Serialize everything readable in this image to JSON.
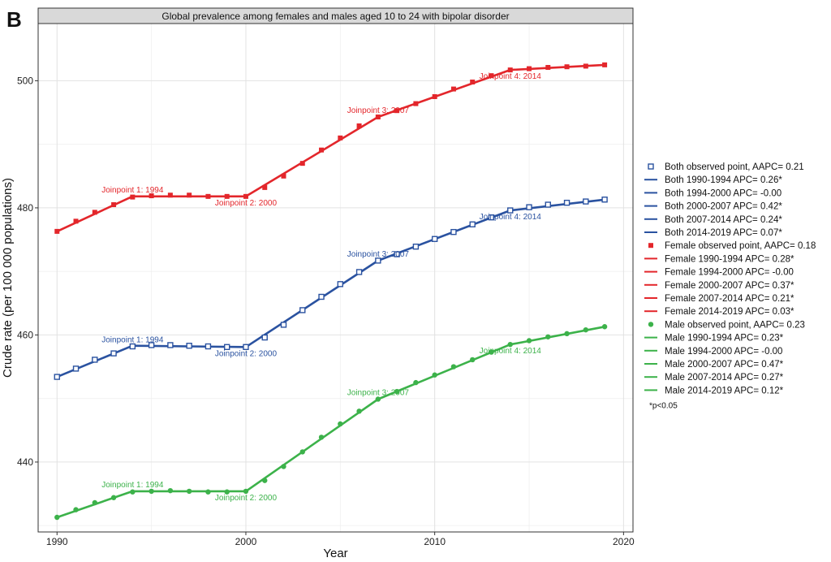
{
  "panel_label": "B",
  "chart_data": {
    "type": "line",
    "title": "Global prevalence among females and males aged 10 to 24 with bipolar disorder",
    "xlabel": "Year",
    "ylabel": "Crude rate (per 100 000 populations)",
    "xlim": [
      1989,
      2020.5
    ],
    "ylim": [
      429,
      509
    ],
    "x_ticks": [
      1990,
      2000,
      2010,
      2020
    ],
    "y_ticks": [
      440,
      460,
      480,
      500
    ],
    "grid": true,
    "legend_position": "right",
    "x": [
      1990,
      1991,
      1992,
      1993,
      1994,
      1995,
      1996,
      1997,
      1998,
      1999,
      2000,
      2001,
      2002,
      2003,
      2004,
      2005,
      2006,
      2007,
      2008,
      2009,
      2010,
      2011,
      2012,
      2013,
      2014,
      2015,
      2016,
      2017,
      2018,
      2019
    ],
    "series": [
      {
        "name": "Both",
        "color": "#2a52a0",
        "marker": "open-square",
        "observed_label": "Both  observed point, AAPC= 0.21",
        "values": [
          453.4,
          454.7,
          456.1,
          457.1,
          458.2,
          458.4,
          458.4,
          458.3,
          458.2,
          458.1,
          458.1,
          459.6,
          461.6,
          463.9,
          466.0,
          468.0,
          469.9,
          471.7,
          472.7,
          473.9,
          475.1,
          476.2,
          477.4,
          478.5,
          479.6,
          480.1,
          480.5,
          480.8,
          481.0,
          481.3
        ],
        "fit_x": [
          1990,
          1994,
          2000,
          2007,
          2014,
          2019
        ],
        "fit_values": [
          453.4,
          458.3,
          458.1,
          471.7,
          479.6,
          481.3
        ],
        "segments": [
          {
            "label": "Both 1990-1994 APC= 0.26*"
          },
          {
            "label": "Both 1994-2000 APC= -0.00"
          },
          {
            "label": "Both 2000-2007 APC= 0.42*"
          },
          {
            "label": "Both 2007-2014 APC= 0.24*"
          },
          {
            "label": "Both 2014-2019 APC= 0.07*"
          }
        ],
        "joinpoints": [
          {
            "label": "Joinpoint 1: 1994",
            "x": 1994,
            "y": 458.2
          },
          {
            "label": "Joinpoint 2: 2000",
            "x": 2000,
            "y": 458.1
          },
          {
            "label": "Joinpoint 3: 2007",
            "x": 2007,
            "y": 471.7
          },
          {
            "label": "Joinpoint 4: 2014",
            "x": 2014,
            "y": 479.6
          }
        ]
      },
      {
        "name": "Female",
        "color": "#e3262b",
        "marker": "filled-square",
        "observed_label": "Female  observed point, AAPC= 0.18",
        "values": [
          476.3,
          477.9,
          479.3,
          480.5,
          481.7,
          481.9,
          482.0,
          482.0,
          481.8,
          481.8,
          481.8,
          483.2,
          485.0,
          487.0,
          489.1,
          491.0,
          492.9,
          494.3,
          495.3,
          496.4,
          497.5,
          498.7,
          499.8,
          500.8,
          501.7,
          501.9,
          502.1,
          502.2,
          502.3,
          502.5
        ],
        "fit_x": [
          1990,
          1994,
          2000,
          2007,
          2014,
          2019
        ],
        "fit_values": [
          476.3,
          481.8,
          481.8,
          494.3,
          501.7,
          502.5
        ],
        "segments": [
          {
            "label": "Female 1990-1994 APC= 0.28*"
          },
          {
            "label": "Female 1994-2000 APC= -0.00"
          },
          {
            "label": "Female 2000-2007 APC= 0.37*"
          },
          {
            "label": "Female 2007-2014 APC= 0.21*"
          },
          {
            "label": "Female 2014-2019 APC= 0.03*"
          }
        ],
        "joinpoints": [
          {
            "label": "Joinpoint 1: 1994",
            "x": 1994,
            "y": 481.8
          },
          {
            "label": "Joinpoint 2: 2000",
            "x": 2000,
            "y": 481.8
          },
          {
            "label": "Joinpoint 3: 2007",
            "x": 2007,
            "y": 494.3
          },
          {
            "label": "Joinpoint 4: 2014",
            "x": 2014,
            "y": 501.7
          }
        ]
      },
      {
        "name": "Male",
        "color": "#3cb24a",
        "marker": "filled-circle",
        "observed_label": "Male  observed point, AAPC= 0.23",
        "values": [
          431.3,
          432.5,
          433.6,
          434.4,
          435.3,
          435.4,
          435.5,
          435.4,
          435.3,
          435.3,
          435.4,
          437.1,
          439.3,
          441.6,
          443.9,
          446.0,
          448.0,
          449.9,
          451.1,
          452.5,
          453.7,
          455.0,
          456.1,
          457.3,
          458.5,
          459.1,
          459.7,
          460.2,
          460.8,
          461.3
        ],
        "fit_x": [
          1990,
          1994,
          2000,
          2007,
          2014,
          2019
        ],
        "fit_values": [
          431.3,
          435.4,
          435.4,
          449.9,
          458.5,
          461.3
        ],
        "segments": [
          {
            "label": "Male 1990-1994 APC= 0.23*"
          },
          {
            "label": "Male 1994-2000 APC= -0.00"
          },
          {
            "label": "Male 2000-2007 APC= 0.47*"
          },
          {
            "label": "Male 2007-2014 APC= 0.27*"
          },
          {
            "label": "Male 2014-2019 APC= 0.12*"
          }
        ],
        "joinpoints": [
          {
            "label": "Joinpoint 1: 1994",
            "x": 1994,
            "y": 435.4
          },
          {
            "label": "Joinpoint 2: 2000",
            "x": 2000,
            "y": 435.4
          },
          {
            "label": "Joinpoint 3: 2007",
            "x": 2007,
            "y": 449.9
          },
          {
            "label": "Joinpoint 4: 2014",
            "x": 2014,
            "y": 458.5
          }
        ]
      }
    ],
    "legend_note": "*p<0.05"
  }
}
